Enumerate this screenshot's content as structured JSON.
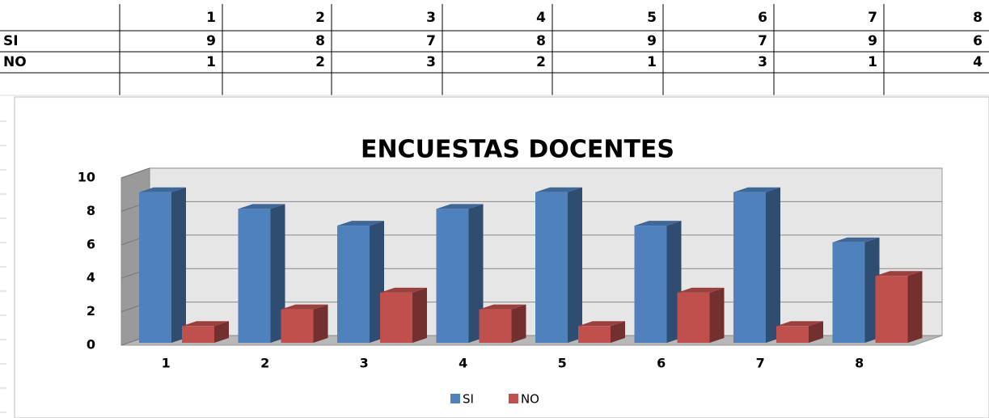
{
  "chart_data": {
    "type": "bar3d",
    "title": "ENCUESTAS DOCENTES",
    "categories": [
      "1",
      "2",
      "3",
      "4",
      "5",
      "6",
      "7",
      "8"
    ],
    "series": [
      {
        "name": "SI",
        "color": "#4f81bd",
        "values": [
          9,
          8,
          7,
          8,
          9,
          7,
          9,
          6
        ]
      },
      {
        "name": "NO",
        "color": "#c0504d",
        "values": [
          1,
          2,
          3,
          2,
          1,
          3,
          1,
          4
        ]
      }
    ],
    "ylim": [
      0,
      10
    ],
    "yticks": [
      0,
      2,
      4,
      6,
      8,
      10
    ],
    "grid": true,
    "legend": "bottom"
  }
}
